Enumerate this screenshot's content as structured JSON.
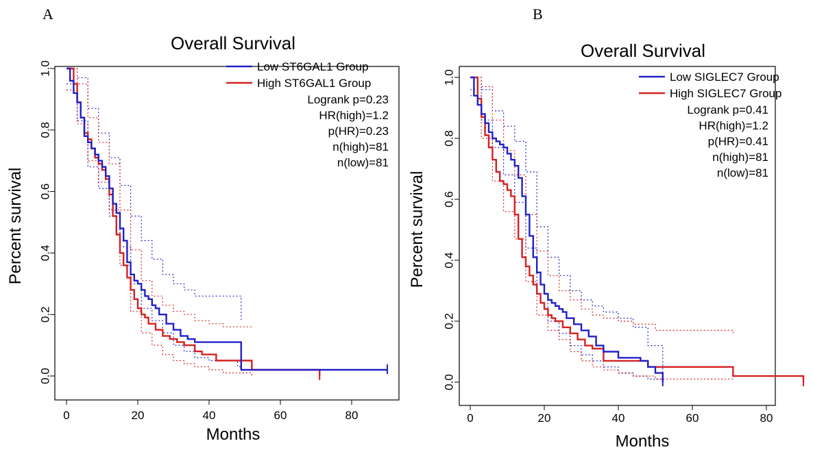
{
  "panels": [
    {
      "letter": "A",
      "title": "Overall Survival",
      "xlabel": "Months",
      "ylabel": "Percent survival",
      "legend": [
        "Low ST6GAL1 Group",
        "High ST6GAL1 Group"
      ],
      "stats": [
        "Logrank p=0.23",
        "HR(high)=1.2",
        "p(HR)=0.23",
        "n(high)=81",
        "n(low)=81"
      ]
    },
    {
      "letter": "B",
      "title": "Overall Survival",
      "xlabel": "Months",
      "ylabel": "Percent survival",
      "legend": [
        "Low SIGLEC7 Group",
        "High SIGLEC7 Group"
      ],
      "stats": [
        "Logrank p=0.41",
        "HR(high)=1.2",
        "p(HR)=0.41",
        "n(high)=81",
        "n(low)=81"
      ]
    }
  ],
  "colors": {
    "low": "#2020c8",
    "high": "#d42020"
  },
  "chart_data": [
    {
      "type": "line",
      "title": "Overall Survival",
      "xlabel": "Months",
      "ylabel": "Percent survival",
      "xlim": [
        0,
        90
      ],
      "ylim": [
        0,
        1
      ],
      "xticks": [
        "0",
        "20",
        "40",
        "60",
        "80"
      ],
      "yticks": [
        "0.0",
        "0.2",
        "0.4",
        "0.6",
        "0.8",
        "1.0"
      ],
      "legend_position": "top-right",
      "series": [
        {
          "name": "Low ST6GAL1 Group",
          "color": "#2020c8",
          "x": [
            0,
            1,
            2,
            3,
            4,
            5,
            6,
            7,
            8,
            9,
            10,
            11,
            12,
            13,
            14,
            15,
            16,
            17,
            18,
            19,
            20,
            21,
            22,
            23,
            24,
            25,
            26,
            28,
            30,
            32,
            34,
            36,
            48,
            49,
            90
          ],
          "y": [
            1.0,
            0.96,
            0.92,
            0.89,
            0.84,
            0.78,
            0.76,
            0.74,
            0.72,
            0.7,
            0.68,
            0.65,
            0.61,
            0.56,
            0.53,
            0.48,
            0.44,
            0.37,
            0.33,
            0.31,
            0.3,
            0.28,
            0.26,
            0.25,
            0.23,
            0.22,
            0.2,
            0.17,
            0.15,
            0.13,
            0.12,
            0.11,
            0.11,
            0.02,
            0.02
          ]
        },
        {
          "name": "High ST6GAL1 Group",
          "color": "#d42020",
          "x": [
            0,
            2,
            3,
            4,
            5,
            6,
            7,
            8,
            9,
            10,
            11,
            12,
            13,
            14,
            15,
            16,
            17,
            18,
            19,
            20,
            21,
            22,
            23,
            25,
            27,
            29,
            31,
            33,
            36,
            38,
            42,
            52,
            71
          ],
          "y": [
            1.0,
            0.95,
            0.89,
            0.84,
            0.79,
            0.77,
            0.74,
            0.71,
            0.69,
            0.67,
            0.64,
            0.59,
            0.52,
            0.46,
            0.4,
            0.36,
            0.32,
            0.28,
            0.25,
            0.22,
            0.2,
            0.19,
            0.17,
            0.15,
            0.13,
            0.12,
            0.11,
            0.1,
            0.08,
            0.07,
            0.05,
            0.02,
            0.0
          ]
        },
        {
          "name": "",
          "role": "ci",
          "color": "#2020c8",
          "x": [
            0,
            3,
            6,
            9,
            12,
            15,
            18,
            21,
            24,
            27,
            30,
            33,
            36,
            40,
            44,
            48,
            49
          ],
          "y": [
            1.0,
            0.97,
            0.87,
            0.79,
            0.71,
            0.62,
            0.52,
            0.44,
            0.38,
            0.33,
            0.3,
            0.28,
            0.26,
            0.26,
            0.26,
            0.26,
            0.18
          ]
        },
        {
          "name": "",
          "role": "ci",
          "color": "#2020c8",
          "x": [
            0,
            3,
            6,
            9,
            12,
            15,
            18,
            21,
            24,
            27,
            30,
            33,
            36,
            40,
            44,
            48,
            49
          ],
          "y": [
            0.95,
            0.83,
            0.68,
            0.61,
            0.52,
            0.42,
            0.3,
            0.22,
            0.18,
            0.14,
            0.1,
            0.08,
            0.06,
            0.05,
            0.05,
            0.03,
            0.02
          ]
        },
        {
          "name": "",
          "role": "ci",
          "color": "#d42020",
          "x": [
            0,
            3,
            6,
            9,
            12,
            15,
            18,
            21,
            24,
            27,
            30,
            33,
            36,
            40,
            44,
            48,
            52
          ],
          "y": [
            1.0,
            0.95,
            0.84,
            0.76,
            0.69,
            0.54,
            0.41,
            0.31,
            0.26,
            0.23,
            0.21,
            0.2,
            0.18,
            0.17,
            0.16,
            0.16,
            0.16
          ]
        },
        {
          "name": "",
          "role": "ci",
          "color": "#d42020",
          "x": [
            0,
            3,
            6,
            9,
            12,
            15,
            18,
            21,
            24,
            27,
            30,
            33,
            36,
            40,
            44,
            48,
            52
          ],
          "y": [
            0.93,
            0.82,
            0.7,
            0.63,
            0.54,
            0.36,
            0.21,
            0.14,
            0.1,
            0.07,
            0.05,
            0.04,
            0.03,
            0.02,
            0.01,
            0.01,
            0.0
          ]
        }
      ]
    },
    {
      "type": "line",
      "title": "Overall Survival",
      "xlabel": "Months",
      "ylabel": "Percent survival",
      "xlim": [
        0,
        90
      ],
      "ylim": [
        0,
        1
      ],
      "xticks": [
        "0",
        "20",
        "40",
        "60",
        "80"
      ],
      "yticks": [
        "0.0",
        "0.2",
        "0.4",
        "0.6",
        "0.8",
        "1.0"
      ],
      "legend_position": "top-right",
      "series": [
        {
          "name": "Low SIGLEC7 Group",
          "color": "#2020c8",
          "x": [
            0,
            1,
            2,
            3,
            4,
            5,
            6,
            7,
            8,
            9,
            10,
            11,
            12,
            13,
            14,
            15,
            16,
            17,
            18,
            19,
            20,
            21,
            22,
            23,
            24,
            25,
            26,
            28,
            30,
            32,
            34,
            36,
            40,
            46,
            48,
            50,
            52
          ],
          "y": [
            1.0,
            0.94,
            0.91,
            0.88,
            0.85,
            0.82,
            0.8,
            0.79,
            0.78,
            0.77,
            0.75,
            0.73,
            0.71,
            0.67,
            0.61,
            0.55,
            0.48,
            0.41,
            0.36,
            0.32,
            0.29,
            0.27,
            0.26,
            0.25,
            0.24,
            0.23,
            0.21,
            0.19,
            0.17,
            0.15,
            0.12,
            0.1,
            0.08,
            0.07,
            0.05,
            0.03,
            0.0
          ]
        },
        {
          "name": "High SIGLEC7 Group",
          "color": "#d42020",
          "x": [
            0,
            2,
            3,
            4,
            5,
            6,
            7,
            8,
            9,
            10,
            11,
            12,
            13,
            14,
            15,
            16,
            17,
            18,
            19,
            20,
            21,
            22,
            23,
            25,
            27,
            29,
            31,
            33,
            36,
            48,
            71,
            90
          ],
          "y": [
            1.0,
            0.93,
            0.87,
            0.81,
            0.77,
            0.73,
            0.69,
            0.66,
            0.65,
            0.63,
            0.61,
            0.55,
            0.47,
            0.41,
            0.38,
            0.35,
            0.32,
            0.29,
            0.26,
            0.24,
            0.22,
            0.21,
            0.2,
            0.18,
            0.16,
            0.14,
            0.12,
            0.11,
            0.07,
            0.05,
            0.02,
            0.0
          ]
        },
        {
          "name": "",
          "role": "ci",
          "color": "#2020c8",
          "x": [
            0,
            3,
            6,
            9,
            12,
            15,
            18,
            21,
            24,
            27,
            30,
            33,
            36,
            40,
            44,
            48,
            52
          ],
          "y": [
            1.0,
            0.96,
            0.89,
            0.84,
            0.79,
            0.69,
            0.51,
            0.41,
            0.35,
            0.3,
            0.27,
            0.25,
            0.23,
            0.21,
            0.18,
            0.12,
            0.03
          ]
        },
        {
          "name": "",
          "role": "ci",
          "color": "#2020c8",
          "x": [
            0,
            3,
            6,
            9,
            12,
            15,
            18,
            21,
            24,
            27,
            30,
            33,
            36,
            40,
            44,
            48,
            52
          ],
          "y": [
            0.96,
            0.86,
            0.77,
            0.68,
            0.59,
            0.44,
            0.29,
            0.2,
            0.16,
            0.12,
            0.09,
            0.07,
            0.05,
            0.03,
            0.02,
            0.01,
            0.0
          ]
        },
        {
          "name": "",
          "role": "ci",
          "color": "#d42020",
          "x": [
            0,
            3,
            6,
            9,
            12,
            15,
            18,
            21,
            24,
            27,
            30,
            33,
            36,
            40,
            44,
            50,
            60,
            71
          ],
          "y": [
            1.0,
            0.97,
            0.86,
            0.76,
            0.68,
            0.55,
            0.43,
            0.35,
            0.3,
            0.27,
            0.24,
            0.22,
            0.21,
            0.2,
            0.19,
            0.17,
            0.17,
            0.16
          ]
        },
        {
          "name": "",
          "role": "ci",
          "color": "#d42020",
          "x": [
            0,
            3,
            6,
            9,
            12,
            15,
            18,
            21,
            24,
            27,
            30,
            33,
            36,
            40,
            44,
            50,
            60,
            71
          ],
          "y": [
            0.94,
            0.8,
            0.66,
            0.56,
            0.47,
            0.33,
            0.22,
            0.17,
            0.14,
            0.1,
            0.07,
            0.05,
            0.04,
            0.03,
            0.02,
            0.01,
            0.01,
            0.01
          ]
        }
      ]
    }
  ]
}
